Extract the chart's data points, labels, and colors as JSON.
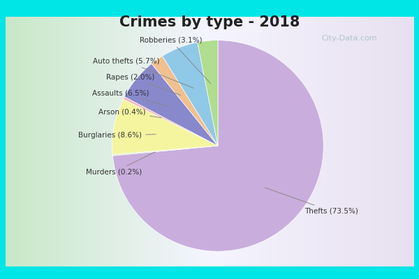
{
  "title": "Crimes by type - 2018",
  "title_fontsize": 15,
  "title_fontweight": "bold",
  "slices": [
    {
      "label": "Thefts",
      "pct": 73.5,
      "color": "#c9aedd"
    },
    {
      "label": "Murders",
      "pct": 0.2,
      "color": "#d4e8b0"
    },
    {
      "label": "Burglaries",
      "pct": 8.6,
      "color": "#f5f5a0"
    },
    {
      "label": "Arson",
      "pct": 0.4,
      "color": "#f5b8b8"
    },
    {
      "label": "Assaults",
      "pct": 6.5,
      "color": "#8888cc"
    },
    {
      "label": "Rapes",
      "pct": 2.0,
      "color": "#f0c090"
    },
    {
      "label": "Auto thefts",
      "pct": 5.7,
      "color": "#90c8e8"
    },
    {
      "label": "Robberies",
      "pct": 3.1,
      "color": "#b0dd90"
    }
  ],
  "cyan_border": "#00e5e5",
  "bg_gradient_left": "#c8e8c8",
  "bg_gradient_right": "#e8e0f0",
  "startangle": 90,
  "fig_width": 6.0,
  "fig_height": 4.0,
  "label_positions": {
    "Thefts": [
      0.82,
      -0.62,
      "left"
    ],
    "Murders": [
      -0.72,
      -0.25,
      "right"
    ],
    "Burglaries": [
      -0.72,
      0.1,
      "right"
    ],
    "Arson": [
      -0.68,
      0.32,
      "right"
    ],
    "Assaults": [
      -0.65,
      0.5,
      "right"
    ],
    "Rapes": [
      -0.6,
      0.65,
      "right"
    ],
    "Auto thefts": [
      -0.55,
      0.8,
      "right"
    ],
    "Robberies": [
      -0.15,
      1.0,
      "right"
    ]
  }
}
